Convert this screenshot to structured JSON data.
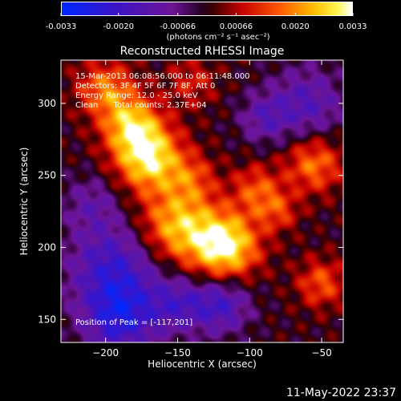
{
  "colorbar": {
    "tick_labels": [
      "-0.0033",
      "-0.0020",
      "-0.00066",
      "0.00066",
      "0.0020",
      "0.0033"
    ],
    "units_label": "(photons cm⁻² s⁻¹ asec⁻²)",
    "vmin": -0.0033,
    "vmax": 0.0033
  },
  "chart_data": {
    "type": "heatmap",
    "title": "Reconstructed RHESSI Image",
    "xlabel": "Heliocentric X (arcsec)",
    "ylabel": "Heliocentric Y (arcsec)",
    "xlim": [
      -231,
      -35
    ],
    "ylim": [
      134,
      330
    ],
    "xticks": [
      -200,
      -150,
      -100,
      -50
    ],
    "yticks": [
      150,
      200,
      250,
      300
    ],
    "xtick_labels": [
      "−200",
      "−150",
      "−100",
      "−50"
    ],
    "ytick_labels": [
      "150",
      "200",
      "250",
      "300"
    ],
    "peak": [
      -117,
      201
    ],
    "annotations": {
      "time_range": "15-Mar-2013 06:08:56.000 to 06:11:48.000",
      "detectors": "Detectors: 3F 4F 5F 6F 7F 8F, Att 0",
      "energy": "Energy Range: 12.0 - 25.0 keV",
      "method": "Clean",
      "counts": "Total counts: 2.37E+04",
      "peak_text": "Position of Peak = [-117,201]"
    }
  },
  "timestamp": "11-May-2022 23:37"
}
